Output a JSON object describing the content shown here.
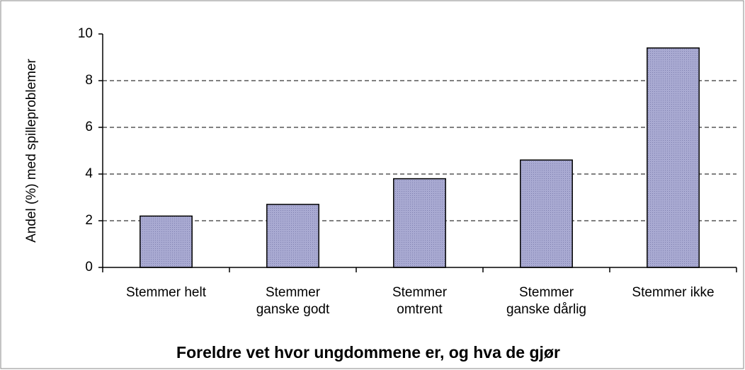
{
  "chart_data": {
    "type": "bar",
    "title": "Foreldre vet hvor ungdommene er, og hva de gjør",
    "y_label": "Andel (%) med spilleproblemer",
    "categories": [
      "Stemmer helt",
      "Stemmer ganske godt",
      "Stemmer omtrent",
      "Stemmer ganske dårlig",
      "Stemmer ikke"
    ],
    "values": [
      2.2,
      2.7,
      3.8,
      4.6,
      9.4
    ],
    "color": "#a9aad2",
    "ylim": [
      0,
      10
    ],
    "yticks": [
      0,
      2,
      4,
      6,
      8,
      10
    ],
    "grid": true
  }
}
